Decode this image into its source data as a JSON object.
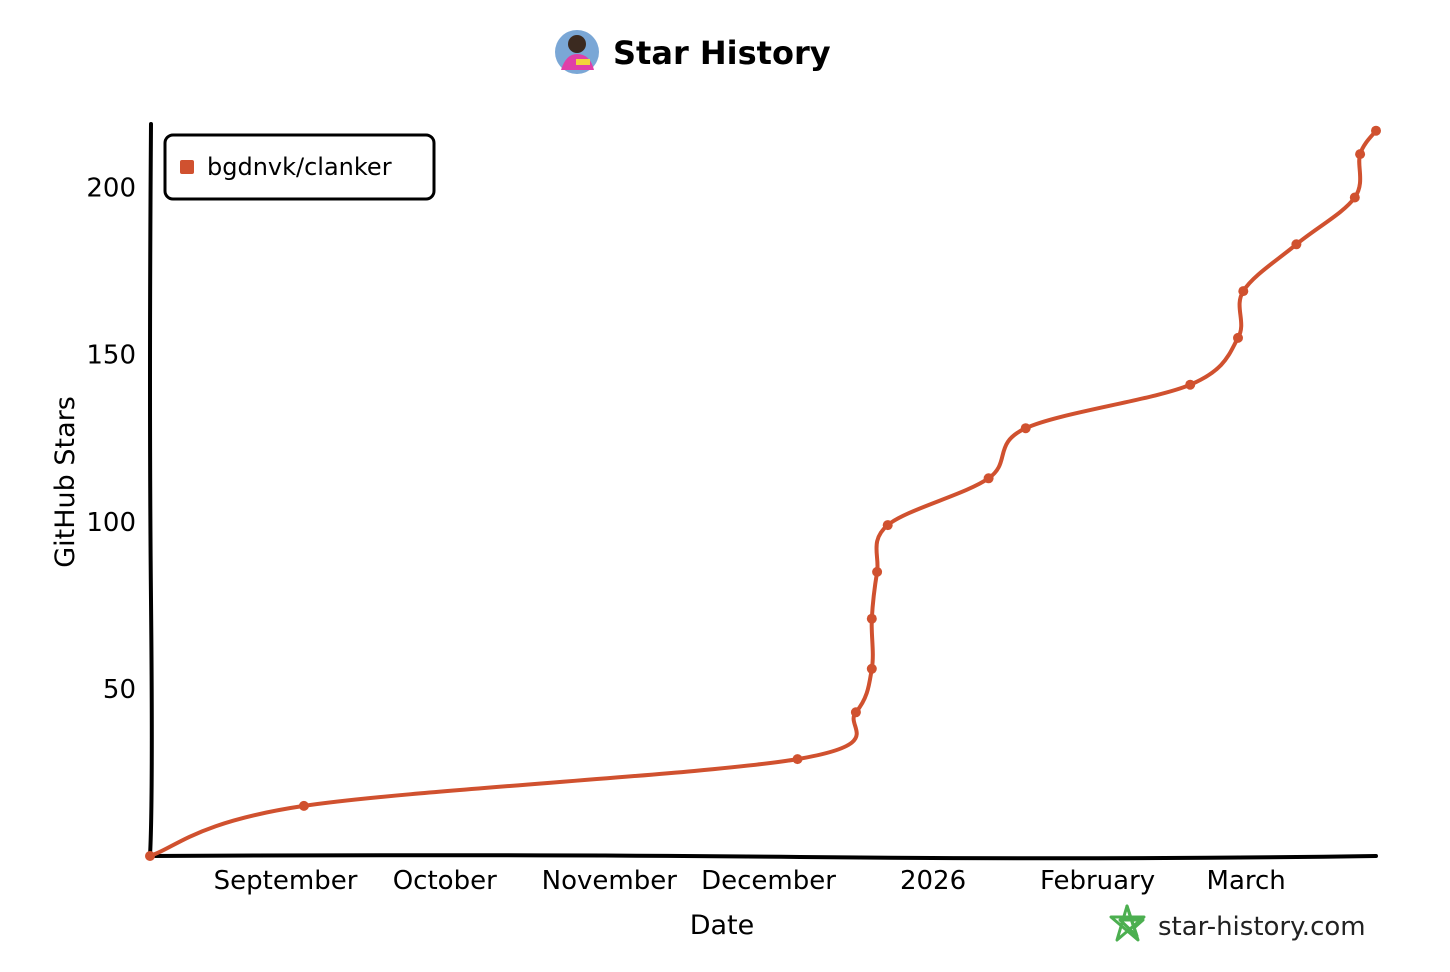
{
  "colors": {
    "series": "#d0512f",
    "axis": "#000000",
    "brand": "#4caf50"
  },
  "icons": {
    "title_avatar": "avatar-icon",
    "brand_logo": "star-logo-icon"
  },
  "brand": {
    "text": "star-history.com"
  },
  "chart_data": {
    "type": "line",
    "title": "Star History",
    "xlabel": "Date",
    "ylabel": "GitHub Stars",
    "xlim": [
      "2025-08-14",
      "2026-03-25"
    ],
    "ylim": [
      0,
      219
    ],
    "grid": false,
    "legend_position": "top-left",
    "x_ticks": [
      {
        "label": "September",
        "date": "2025-09-01"
      },
      {
        "label": "October",
        "date": "2025-10-01"
      },
      {
        "label": "November",
        "date": "2025-11-01"
      },
      {
        "label": "December",
        "date": "2025-12-01"
      },
      {
        "label": "2026",
        "date": "2026-01-01"
      },
      {
        "label": "February",
        "date": "2026-02-01"
      },
      {
        "label": "March",
        "date": "2026-03-01"
      }
    ],
    "y_ticks": [
      {
        "label": "50",
        "value": 50
      },
      {
        "label": "100",
        "value": 100
      },
      {
        "label": "150",
        "value": 150
      },
      {
        "label": "200",
        "value": 200
      }
    ],
    "series": [
      {
        "name": "bgdnvk/clanker",
        "points": [
          {
            "date": "2025-08-14",
            "value": 0
          },
          {
            "date": "2025-09-12",
            "value": 15
          },
          {
            "date": "2025-12-14",
            "value": 29
          },
          {
            "date": "2025-12-25",
            "value": 43
          },
          {
            "date": "2025-12-28",
            "value": 56
          },
          {
            "date": "2025-12-28",
            "value": 71
          },
          {
            "date": "2025-12-29",
            "value": 85
          },
          {
            "date": "2025-12-31",
            "value": 99
          },
          {
            "date": "2026-01-19",
            "value": 113
          },
          {
            "date": "2026-01-26",
            "value": 128
          },
          {
            "date": "2026-02-26",
            "value": 141
          },
          {
            "date": "2026-03-07",
            "value": 155
          },
          {
            "date": "2026-03-08",
            "value": 169
          },
          {
            "date": "2026-03-18",
            "value": 183
          },
          {
            "date": "2026-03-29",
            "value": 197
          },
          {
            "date": "2026-03-30",
            "value": 210
          },
          {
            "date": "2026-04-02",
            "value": 217
          }
        ]
      }
    ]
  }
}
